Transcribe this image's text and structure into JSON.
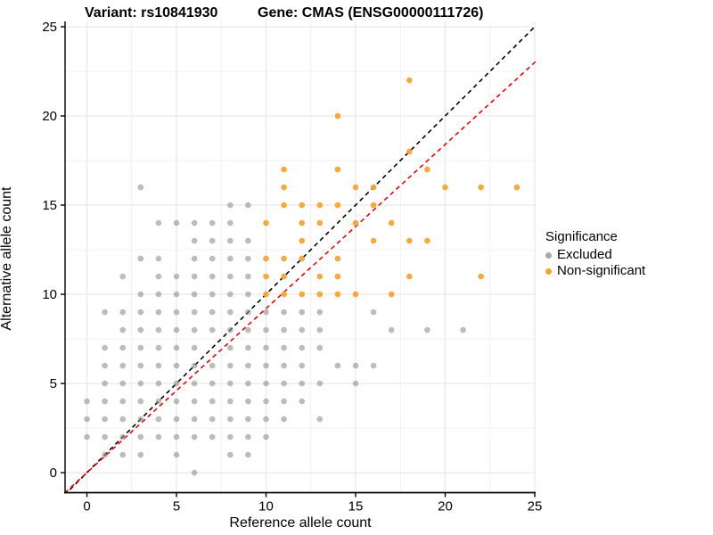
{
  "titles": {
    "variant": "Variant: rs10841930",
    "gene": "Gene: CMAS (ENSG00000111726)"
  },
  "axes": {
    "x_label": "Reference allele count",
    "y_label": "Alternative allele count",
    "x_ticks": [
      0,
      5,
      10,
      15,
      20,
      25
    ],
    "y_ticks": [
      0,
      5,
      10,
      15,
      20,
      25
    ],
    "x_range": [
      -1.22,
      25.05
    ],
    "y_range": [
      -1.12,
      25.3
    ],
    "grid_major_color": "#e3e3e3",
    "grid_minor_color": "#f1f1f1",
    "axis_color": "#000000"
  },
  "legend": {
    "title": "Significance",
    "items": [
      {
        "label": "Excluded",
        "color": "#a8a8a8"
      },
      {
        "label": "Non-significant",
        "color": "#f8a331"
      }
    ]
  },
  "chart_data": {
    "type": "scatter",
    "title": "Variant: rs10841930 — Gene: CMAS (ENSG00000111726)",
    "xlabel": "Reference allele count",
    "ylabel": "Alternative allele count",
    "xlim": [
      -1.22,
      25.05
    ],
    "ylim": [
      -1.12,
      25.3
    ],
    "grid": true,
    "legend_position": "right",
    "point_radius": 3.3,
    "series": [
      {
        "name": "Excluded",
        "color": "#8f8f8f",
        "opacity": 0.6,
        "points": [
          [
            6,
            0
          ],
          [
            1,
            1
          ],
          [
            2,
            1
          ],
          [
            3,
            1
          ],
          [
            5,
            1
          ],
          [
            8,
            1
          ],
          [
            9,
            1
          ],
          [
            0,
            2
          ],
          [
            1,
            2
          ],
          [
            2,
            2
          ],
          [
            3,
            2
          ],
          [
            4,
            2
          ],
          [
            5,
            2
          ],
          [
            6,
            2
          ],
          [
            7,
            2
          ],
          [
            8,
            2
          ],
          [
            9,
            2
          ],
          [
            10,
            2
          ],
          [
            0,
            3
          ],
          [
            1,
            3
          ],
          [
            2,
            3
          ],
          [
            3,
            3
          ],
          [
            4,
            3
          ],
          [
            5,
            3
          ],
          [
            6,
            3
          ],
          [
            7,
            3
          ],
          [
            8,
            3
          ],
          [
            9,
            3
          ],
          [
            10,
            3
          ],
          [
            11,
            3
          ],
          [
            13,
            3
          ],
          [
            0,
            4
          ],
          [
            1,
            4
          ],
          [
            2,
            4
          ],
          [
            3,
            4
          ],
          [
            4,
            4
          ],
          [
            5,
            4
          ],
          [
            6,
            4
          ],
          [
            7,
            4
          ],
          [
            8,
            4
          ],
          [
            9,
            4
          ],
          [
            10,
            4
          ],
          [
            11,
            4
          ],
          [
            12,
            4
          ],
          [
            1,
            5
          ],
          [
            2,
            5
          ],
          [
            3,
            5
          ],
          [
            4,
            5
          ],
          [
            5,
            5
          ],
          [
            6,
            5
          ],
          [
            7,
            5
          ],
          [
            8,
            5
          ],
          [
            9,
            5
          ],
          [
            10,
            5
          ],
          [
            11,
            5
          ],
          [
            12,
            5
          ],
          [
            13,
            5
          ],
          [
            15,
            5
          ],
          [
            1,
            6
          ],
          [
            2,
            6
          ],
          [
            3,
            6
          ],
          [
            4,
            6
          ],
          [
            5,
            6
          ],
          [
            6,
            6
          ],
          [
            7,
            6
          ],
          [
            8,
            6
          ],
          [
            9,
            6
          ],
          [
            10,
            6
          ],
          [
            11,
            6
          ],
          [
            12,
            6
          ],
          [
            14,
            6
          ],
          [
            15,
            6
          ],
          [
            16,
            6
          ],
          [
            1,
            7
          ],
          [
            2,
            7
          ],
          [
            3,
            7
          ],
          [
            4,
            7
          ],
          [
            5,
            7
          ],
          [
            6,
            7
          ],
          [
            8,
            7
          ],
          [
            9,
            7
          ],
          [
            10,
            7
          ],
          [
            11,
            7
          ],
          [
            12,
            7
          ],
          [
            13,
            7
          ],
          [
            2,
            8
          ],
          [
            3,
            8
          ],
          [
            4,
            8
          ],
          [
            5,
            8
          ],
          [
            6,
            8
          ],
          [
            7,
            8
          ],
          [
            8,
            8
          ],
          [
            9,
            8
          ],
          [
            10,
            8
          ],
          [
            11,
            8
          ],
          [
            12,
            8
          ],
          [
            13,
            8
          ],
          [
            17,
            8
          ],
          [
            19,
            8
          ],
          [
            21,
            8
          ],
          [
            1,
            9
          ],
          [
            2,
            9
          ],
          [
            3,
            9
          ],
          [
            4,
            9
          ],
          [
            5,
            9
          ],
          [
            6,
            9
          ],
          [
            7,
            9
          ],
          [
            8,
            9
          ],
          [
            9,
            9
          ],
          [
            10,
            9
          ],
          [
            11,
            9
          ],
          [
            12,
            9
          ],
          [
            13,
            9
          ],
          [
            16,
            9
          ],
          [
            3,
            10
          ],
          [
            4,
            10
          ],
          [
            5,
            10
          ],
          [
            6,
            10
          ],
          [
            7,
            10
          ],
          [
            8,
            10
          ],
          [
            9,
            10
          ],
          [
            2,
            11
          ],
          [
            4,
            11
          ],
          [
            5,
            11
          ],
          [
            6,
            11
          ],
          [
            7,
            11
          ],
          [
            8,
            11
          ],
          [
            9,
            11
          ],
          [
            3,
            12
          ],
          [
            4,
            12
          ],
          [
            6,
            12
          ],
          [
            7,
            12
          ],
          [
            8,
            12
          ],
          [
            9,
            12
          ],
          [
            6,
            13
          ],
          [
            7,
            13
          ],
          [
            8,
            13
          ],
          [
            9,
            13
          ],
          [
            4,
            14
          ],
          [
            5,
            14
          ],
          [
            6,
            14
          ],
          [
            7,
            14
          ],
          [
            8,
            14
          ],
          [
            8,
            15
          ],
          [
            9,
            15
          ],
          [
            3,
            16
          ]
        ]
      },
      {
        "name": "Non-significant",
        "color": "#f8a331",
        "opacity": 0.95,
        "points": [
          [
            10,
            10
          ],
          [
            11,
            10
          ],
          [
            12,
            10
          ],
          [
            13,
            10
          ],
          [
            14,
            10
          ],
          [
            15,
            10
          ],
          [
            17,
            10
          ],
          [
            10,
            11
          ],
          [
            11,
            11
          ],
          [
            13,
            11
          ],
          [
            14,
            11
          ],
          [
            18,
            11
          ],
          [
            22,
            11
          ],
          [
            10,
            12
          ],
          [
            11,
            12
          ],
          [
            12,
            12
          ],
          [
            14,
            12
          ],
          [
            12,
            13
          ],
          [
            16,
            13
          ],
          [
            18,
            13
          ],
          [
            19,
            13
          ],
          [
            10,
            14
          ],
          [
            12,
            14
          ],
          [
            13,
            14
          ],
          [
            15,
            14
          ],
          [
            17,
            14
          ],
          [
            11,
            15
          ],
          [
            12,
            15
          ],
          [
            13,
            15
          ],
          [
            14,
            15
          ],
          [
            16,
            15
          ],
          [
            11,
            16
          ],
          [
            15,
            16
          ],
          [
            16,
            16
          ],
          [
            20,
            16
          ],
          [
            22,
            16
          ],
          [
            24,
            16
          ],
          [
            11,
            17
          ],
          [
            14,
            17
          ],
          [
            19,
            17
          ],
          [
            18,
            18
          ],
          [
            14,
            20
          ],
          [
            18,
            22
          ]
        ]
      }
    ],
    "reference_lines": [
      {
        "name": "identity-line",
        "slope": 1.0,
        "intercept": 0.0,
        "color": "#000000",
        "dash": "5,4"
      },
      {
        "name": "fit-line",
        "slope": 0.92,
        "intercept": 0.0,
        "color": "#f40000",
        "dash": "5,4"
      }
    ]
  }
}
